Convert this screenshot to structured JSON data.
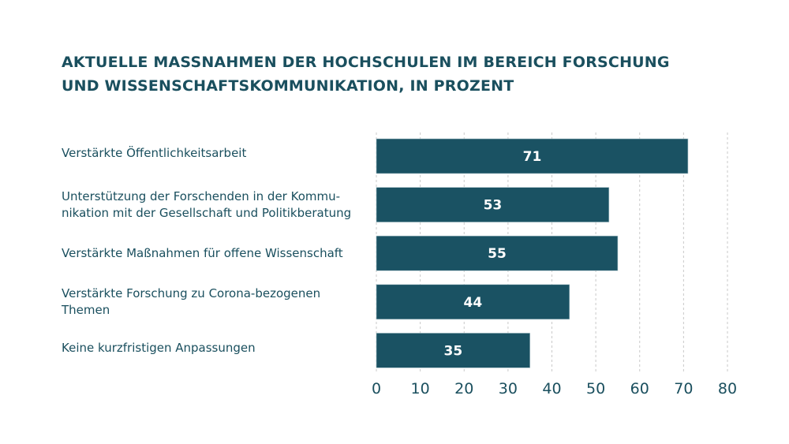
{
  "chart_data": {
    "type": "bar",
    "orientation": "horizontal",
    "title_lines": [
      "AKTUELLE MASSNAHMEN DER HOCHSCHULEN IM BEREICH FORSCHUNG",
      "UND WISSENSCHAFTSKOMMUNIKATION, IN PROZENT"
    ],
    "categories": [
      [
        "Verstärkte Öffentlichkeitsarbeit"
      ],
      [
        "Unterstützung der Forschenden in der Kommu-",
        "nikation mit der Gesellschaft und Politikberatung"
      ],
      [
        "Verstärkte Maßnahmen für offene Wissenschaft"
      ],
      [
        "Verstärkte Forschung zu Corona-bezogenen",
        "Themen"
      ],
      [
        "Keine kurzfristigen Anpassungen"
      ]
    ],
    "values": [
      71,
      53,
      55,
      44,
      35
    ],
    "data_labels": [
      "71",
      "53",
      "55",
      "44",
      "35"
    ],
    "xlabel": "",
    "ylabel": "",
    "xlim": [
      0,
      80
    ],
    "xticks": [
      0,
      10,
      20,
      30,
      40,
      50,
      60,
      70,
      80
    ],
    "xtick_labels": [
      "0",
      "10",
      "20",
      "30",
      "40",
      "50",
      "60",
      "70",
      "80"
    ],
    "grid": "vertical-dashed",
    "legend": "none",
    "colors": {
      "bar": "#1a5263",
      "text": "#1a4f5e",
      "label": "#ffffff",
      "grid": "#c9c9c9"
    }
  }
}
